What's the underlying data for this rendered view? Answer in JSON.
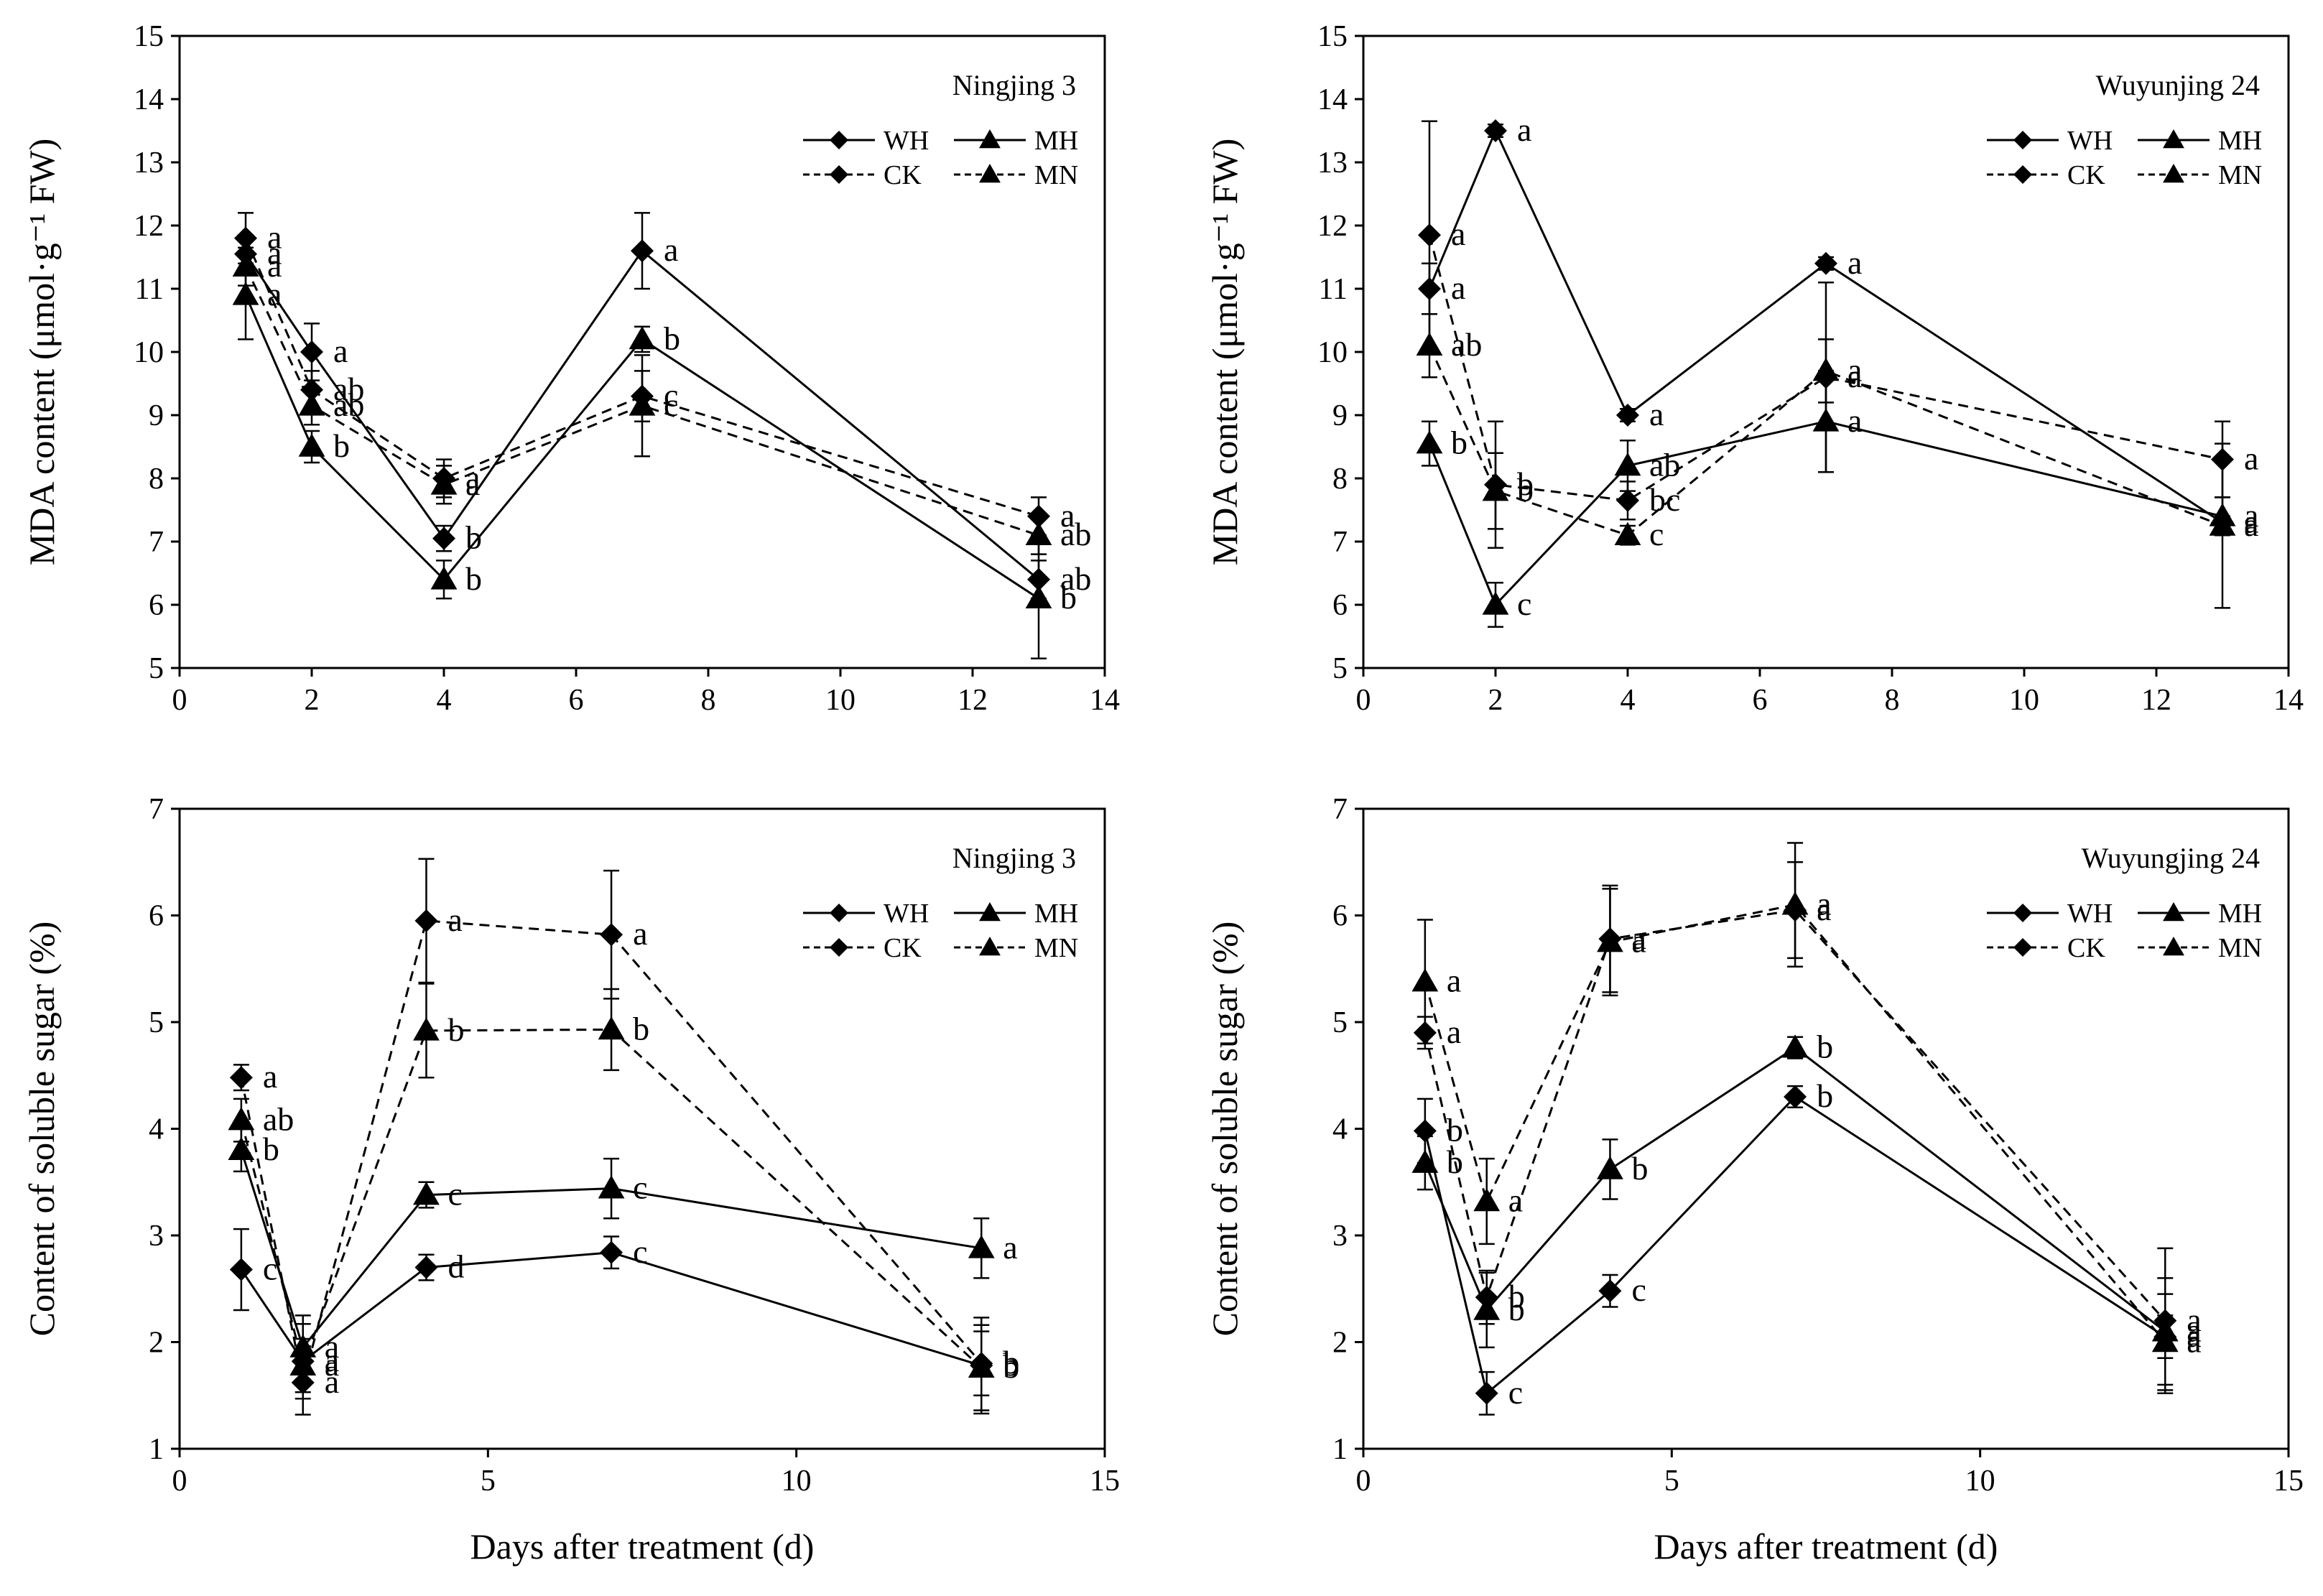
{
  "chart_data": [
    {
      "type": "line",
      "panel_label": "Ningjing 3",
      "ylabel": "MDA content (μmol·g⁻¹ FW)",
      "xlabel": "",
      "xlim": [
        0,
        14
      ],
      "xticks": [
        0,
        2,
        4,
        6,
        8,
        10,
        12,
        14
      ],
      "ylim": [
        5,
        15
      ],
      "yticks": [
        5,
        6,
        7,
        8,
        9,
        10,
        11,
        12,
        13,
        14,
        15
      ],
      "legend": [
        "WH",
        "MH",
        "CK",
        "MN"
      ],
      "legend_position": "top-right",
      "x": [
        1,
        2,
        4,
        7,
        13
      ],
      "series": [
        {
          "name": "WH",
          "values": [
            11.55,
            10.0,
            7.05,
            11.6,
            6.4
          ],
          "errors": [
            0.3,
            0.45,
            0.2,
            0.6,
            0.3
          ],
          "letters": [
            "a",
            "a",
            "b",
            "a",
            "ab"
          ]
        },
        {
          "name": "MH",
          "values": [
            10.9,
            8.5,
            6.4,
            10.2,
            6.1
          ],
          "errors": [
            0.7,
            0.25,
            0.3,
            0.2,
            0.95
          ],
          "letters": [
            "a",
            "b",
            "b",
            "b",
            "b"
          ]
        },
        {
          "name": "CK",
          "values": [
            11.8,
            9.4,
            8.0,
            9.3,
            7.4
          ],
          "errors": [
            0.4,
            0.3,
            0.3,
            0.4,
            0.3
          ],
          "letters": [
            "a",
            "ab",
            "a",
            "c",
            "a"
          ]
        },
        {
          "name": "MN",
          "values": [
            11.35,
            9.15,
            7.9,
            9.15,
            7.1
          ],
          "errors": [
            0.3,
            0.3,
            0.3,
            0.8,
            0.3
          ],
          "letters": [
            "a",
            "ab",
            "a",
            "c",
            "ab"
          ]
        }
      ]
    },
    {
      "type": "line",
      "panel_label": "Wuyunjing 24",
      "ylabel": "MDA content (μmol·g⁻¹ FW)",
      "xlabel": "",
      "xlim": [
        0,
        14
      ],
      "xticks": [
        0,
        2,
        4,
        6,
        8,
        10,
        12,
        14
      ],
      "ylim": [
        5,
        15
      ],
      "yticks": [
        5,
        6,
        7,
        8,
        9,
        10,
        11,
        12,
        13,
        14,
        15
      ],
      "legend": [
        "WH",
        "MH",
        "CK",
        "MN"
      ],
      "legend_position": "top-right",
      "x": [
        1,
        2,
        4,
        7,
        13
      ],
      "series": [
        {
          "name": "WH",
          "values": [
            11.0,
            13.5,
            9.0,
            11.4,
            7.3
          ],
          "errors": [
            0.4,
            0.1,
            0.1,
            0.1,
            0.1
          ],
          "letters": [
            "a",
            "a",
            "a",
            "a",
            "a"
          ]
        },
        {
          "name": "MH",
          "values": [
            8.55,
            6.0,
            8.2,
            8.9,
            7.4
          ],
          "errors": [
            0.35,
            0.35,
            0.4,
            0.8,
            0.3
          ],
          "letters": [
            "b",
            "c",
            "ab",
            "a",
            "a"
          ]
        },
        {
          "name": "CK",
          "values": [
            11.85,
            7.9,
            7.65,
            9.6,
            8.3
          ],
          "errors": [
            1.8,
            1.0,
            0.3,
            1.5,
            0.6
          ],
          "letters": [
            "a",
            "b",
            "bc",
            "a",
            "a"
          ]
        },
        {
          "name": "MN",
          "values": [
            10.1,
            7.8,
            7.1,
            9.7,
            7.25
          ],
          "errors": [
            0.5,
            0.6,
            0.15,
            0.5,
            1.3
          ],
          "letters": [
            "ab",
            "b",
            "c",
            "a",
            "a"
          ]
        }
      ]
    },
    {
      "type": "line",
      "panel_label": "Ningjing 3",
      "ylabel": "Content of soluble sugar (%)",
      "xlabel": "Days after treatment (d)",
      "xlim": [
        0,
        15
      ],
      "xticks": [
        0,
        5,
        10,
        15
      ],
      "ylim": [
        1,
        7
      ],
      "yticks": [
        1,
        2,
        3,
        4,
        5,
        6,
        7
      ],
      "legend": [
        "WH",
        "MH",
        "CK",
        "MN"
      ],
      "legend_position": "top-right",
      "x": [
        1,
        2,
        4,
        7,
        13
      ],
      "series": [
        {
          "name": "WH",
          "values": [
            2.68,
            1.82,
            2.7,
            2.84,
            1.78
          ],
          "errors": [
            0.38,
            0.35,
            0.12,
            0.15,
            0.45
          ],
          "letters": [
            "c",
            "a",
            "d",
            "c",
            "b"
          ]
        },
        {
          "name": "MH",
          "values": [
            3.8,
            1.95,
            3.38,
            3.44,
            2.88
          ],
          "errors": [
            0.2,
            0.3,
            0.12,
            0.28,
            0.28
          ],
          "letters": [
            "b",
            "a",
            "c",
            "c",
            "a"
          ]
        },
        {
          "name": "CK",
          "values": [
            4.48,
            1.62,
            5.95,
            5.82,
            1.8
          ],
          "errors": [
            0.12,
            0.3,
            0.58,
            0.6,
            0.3
          ],
          "letters": [
            "a",
            "a",
            "a",
            "a",
            "b"
          ]
        },
        {
          "name": "MN",
          "values": [
            4.08,
            1.78,
            4.92,
            4.93,
            1.76
          ],
          "errors": [
            0.2,
            0.25,
            0.44,
            0.38,
            0.4
          ],
          "letters": [
            "ab",
            "a",
            "b",
            "b",
            "b"
          ]
        }
      ]
    },
    {
      "type": "line",
      "panel_label": "Wuyungjing 24",
      "ylabel": "Content of soluble sugar (%)",
      "xlabel": "Days after treatment (d)",
      "xlim": [
        0,
        15
      ],
      "xticks": [
        0,
        5,
        10,
        15
      ],
      "ylim": [
        1,
        7
      ],
      "yticks": [
        1,
        2,
        3,
        4,
        5,
        6,
        7
      ],
      "legend": [
        "WH",
        "MH",
        "CK",
        "MN"
      ],
      "legend_position": "top-right",
      "x": [
        1,
        2,
        4,
        7,
        13
      ],
      "series": [
        {
          "name": "WH",
          "values": [
            3.98,
            1.52,
            2.48,
            4.3,
            2.05
          ],
          "errors": [
            0.3,
            0.2,
            0.15,
            0.1,
            0.2
          ],
          "letters": [
            "b",
            "c",
            "c",
            "b",
            "a"
          ]
        },
        {
          "name": "MH",
          "values": [
            3.68,
            2.3,
            3.62,
            4.76,
            2.1
          ],
          "errors": [
            0.25,
            0.35,
            0.28,
            0.1,
            0.5
          ],
          "letters": [
            "b",
            "b",
            "b",
            "b",
            "a"
          ]
        },
        {
          "name": "CK",
          "values": [
            4.9,
            2.42,
            5.78,
            6.05,
            2.2
          ],
          "errors": [
            0.15,
            0.25,
            0.5,
            0.45,
            0.68
          ],
          "letters": [
            "a",
            "b",
            "a",
            "a",
            "a"
          ]
        },
        {
          "name": "MN",
          "values": [
            5.38,
            3.32,
            5.75,
            6.1,
            2.0
          ],
          "errors": [
            0.58,
            0.4,
            0.5,
            0.58,
            0.45
          ],
          "letters": [
            "a",
            "a",
            "a",
            "a",
            "a"
          ]
        }
      ]
    }
  ]
}
